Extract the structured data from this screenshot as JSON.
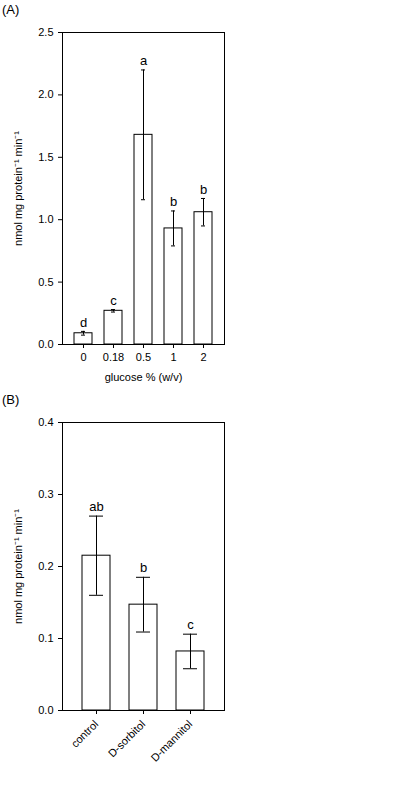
{
  "chart_data": [
    {
      "type": "bar",
      "title": "(A)",
      "x_label": "glucose % (w/v)",
      "y_label": "nmol mg protein⁻¹ min⁻¹",
      "categories": [
        "0",
        "0.18",
        "0.5",
        "1",
        "2"
      ],
      "values": [
        0.09,
        0.27,
        1.68,
        0.93,
        1.06
      ],
      "errors": [
        0.015,
        0.01,
        0.52,
        0.14,
        0.11
      ],
      "annotations": [
        "d",
        "c",
        "a",
        "b",
        "b"
      ],
      "color": "#ffffff",
      "ylim": [
        0,
        2.5
      ],
      "yticks": [
        {
          "value": 0,
          "label": "0.0"
        },
        0.5,
        {
          "value": 1,
          "label": "1.0"
        },
        1.5,
        {
          "value": 2,
          "label": "2.0"
        },
        2.5
      ]
    },
    {
      "type": "bar",
      "title": "(B)",
      "y_label": "nmol mg protein⁻¹ min⁻¹",
      "categories": [
        "control",
        "D-sorbitol",
        "D-mannitol"
      ],
      "values": [
        0.215,
        0.147,
        0.082
      ],
      "errors": [
        0.055,
        0.038,
        0.024
      ],
      "annotations": [
        "ab",
        "b",
        "c"
      ],
      "color": "#ffffff",
      "ylim": [
        0,
        0.4
      ],
      "yticks": [
        {
          "value": 0,
          "label": "0.0"
        },
        0.1,
        0.2,
        0.3,
        0.4
      ]
    }
  ]
}
